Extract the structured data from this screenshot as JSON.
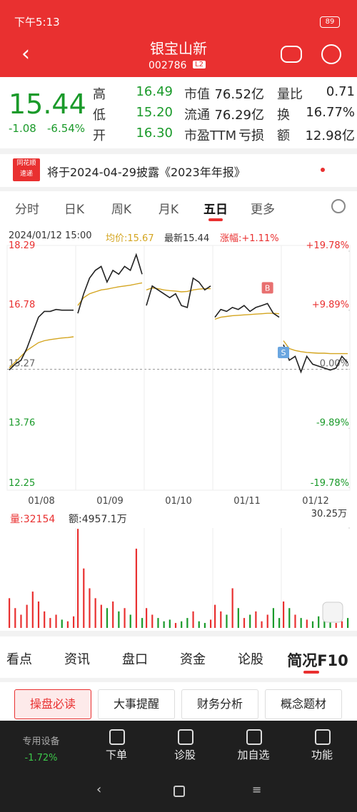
{
  "status": {
    "time": "下午5:13",
    "battery": "89"
  },
  "header": {
    "title": "银宝山新",
    "code": "002786",
    "badge": "L2"
  },
  "quote": {
    "price": "15.44",
    "change": "-1.08",
    "pct": "-6.54%",
    "rows": [
      [
        {
          "label": "高",
          "value": "16.49"
        },
        {
          "label": "市值",
          "value": "76.52亿"
        },
        {
          "label": "量比",
          "value": "0.71"
        }
      ],
      [
        {
          "label": "低",
          "value": "15.20"
        },
        {
          "label": "流通",
          "value": "76.29亿"
        },
        {
          "label": "换",
          "value": "16.77%"
        }
      ],
      [
        {
          "label": "开",
          "value": "16.30"
        },
        {
          "label": "市盈TTM",
          "value": "亏损"
        },
        {
          "label": "额",
          "value": "12.98亿"
        }
      ]
    ]
  },
  "notice": {
    "logo": [
      "同花顺",
      "速递"
    ],
    "text": "将于2024-04-29披露《2023年年报》"
  },
  "tabs": [
    "分时",
    "日K",
    "周K",
    "月K",
    "五日",
    "更多"
  ],
  "info": {
    "time": "2024/01/12 15:00",
    "avg": "均价:15.67",
    "last": "最新15.44",
    "rise": "涨幅:+1.11%"
  },
  "chart_data": {
    "type": "line",
    "ylim": [
      12.25,
      18.29
    ],
    "yticks": [
      18.29,
      16.78,
      15.27,
      13.76,
      12.25
    ],
    "y2lim": [
      -19.78,
      19.78
    ],
    "y2ticks": [
      {
        "value": 19.78,
        "label": "+19.78%"
      },
      {
        "value": 9.89,
        "label": "+9.89%"
      },
      {
        "value": 0,
        "label": "0.00%"
      },
      {
        "value": -9.89,
        "label": "-9.89%"
      },
      {
        "value": -19.78,
        "label": "-19.78%"
      }
    ],
    "series_colors": {
      "price": "#222222",
      "avg": "#d4a520"
    },
    "markers": [
      {
        "label": "B"
      },
      {
        "label": "S"
      }
    ],
    "days": [
      {
        "label": "01/08",
        "price": [
          15.25,
          15.4,
          15.5,
          15.8,
          16.2,
          16.6,
          16.75,
          16.75,
          16.8,
          16.78,
          16.78,
          16.78
        ],
        "avg": [
          15.3,
          15.45,
          15.6,
          15.75,
          15.85,
          15.95,
          16.0,
          16.03,
          16.05,
          16.07,
          16.08,
          16.1
        ],
        "volume": [
          90000,
          60000,
          40000,
          70000,
          110000,
          80000,
          50000,
          30000,
          40000,
          25000,
          20000,
          35000
        ]
      },
      {
        "label": "01/09",
        "price": [
          16.7,
          17.2,
          17.6,
          17.8,
          17.9,
          17.5,
          17.8,
          17.7,
          17.9,
          17.8,
          18.2,
          17.7
        ],
        "avg": [
          16.9,
          17.1,
          17.2,
          17.25,
          17.3,
          17.32,
          17.35,
          17.38,
          17.4,
          17.42,
          17.45,
          17.48
        ],
        "volume": [
          300000,
          180000,
          120000,
          90000,
          70000,
          60000,
          80000,
          50000,
          60000,
          40000,
          240000,
          30000
        ]
      },
      {
        "label": "01/10",
        "price": [
          16.9,
          17.4,
          17.3,
          17.2,
          17.1,
          17.2,
          16.9,
          16.85,
          17.6,
          17.5,
          17.3,
          17.4
        ],
        "avg": [
          17.3,
          17.35,
          17.33,
          17.3,
          17.28,
          17.27,
          17.25,
          17.26,
          17.3,
          17.32,
          17.33,
          17.33
        ],
        "volume": [
          60000,
          40000,
          30000,
          20000,
          25000,
          15000,
          20000,
          30000,
          50000,
          20000,
          15000,
          25000
        ]
      },
      {
        "label": "01/11",
        "price": [
          16.6,
          16.8,
          16.75,
          16.85,
          16.8,
          16.9,
          16.75,
          16.85,
          16.9,
          16.95,
          16.7,
          16.6
        ],
        "avg": [
          16.55,
          16.6,
          16.62,
          16.64,
          16.65,
          16.66,
          16.67,
          16.68,
          16.69,
          16.7,
          16.7,
          16.69
        ],
        "volume": [
          70000,
          50000,
          40000,
          120000,
          60000,
          30000,
          40000,
          50000,
          20000,
          40000,
          60000,
          30000
        ]
      },
      {
        "label": "01/12",
        "price": [
          15.9,
          15.5,
          15.6,
          15.2,
          15.6,
          15.4,
          15.35,
          15.3,
          15.25,
          15.3,
          15.6,
          15.44
        ],
        "avg": [
          16.0,
          15.8,
          15.75,
          15.72,
          15.7,
          15.69,
          15.68,
          15.68,
          15.67,
          15.67,
          15.67,
          15.67
        ],
        "volume": [
          80000,
          60000,
          40000,
          30000,
          25000,
          20000,
          35000,
          25000,
          20000,
          15000,
          20000,
          30000
        ]
      }
    ],
    "volume_header": {
      "vol": "量:32154",
      "amount": "额:4957.1万"
    },
    "vlim": [
      0,
      302500
    ],
    "vticks": [
      {
        "value": 302500,
        "label": "30.25万"
      }
    ]
  },
  "bottom_tabs": [
    "看点",
    "资讯",
    "盘口",
    "资金",
    "论股",
    "简况F10"
  ],
  "buttons": [
    "操盘必读",
    "大事提醒",
    "财务分析",
    "概念题材"
  ],
  "footer": {
    "device": "专用设备",
    "device_pct": "-1.72%",
    "items": [
      "下单",
      "诊股",
      "加自选",
      "功能"
    ]
  }
}
